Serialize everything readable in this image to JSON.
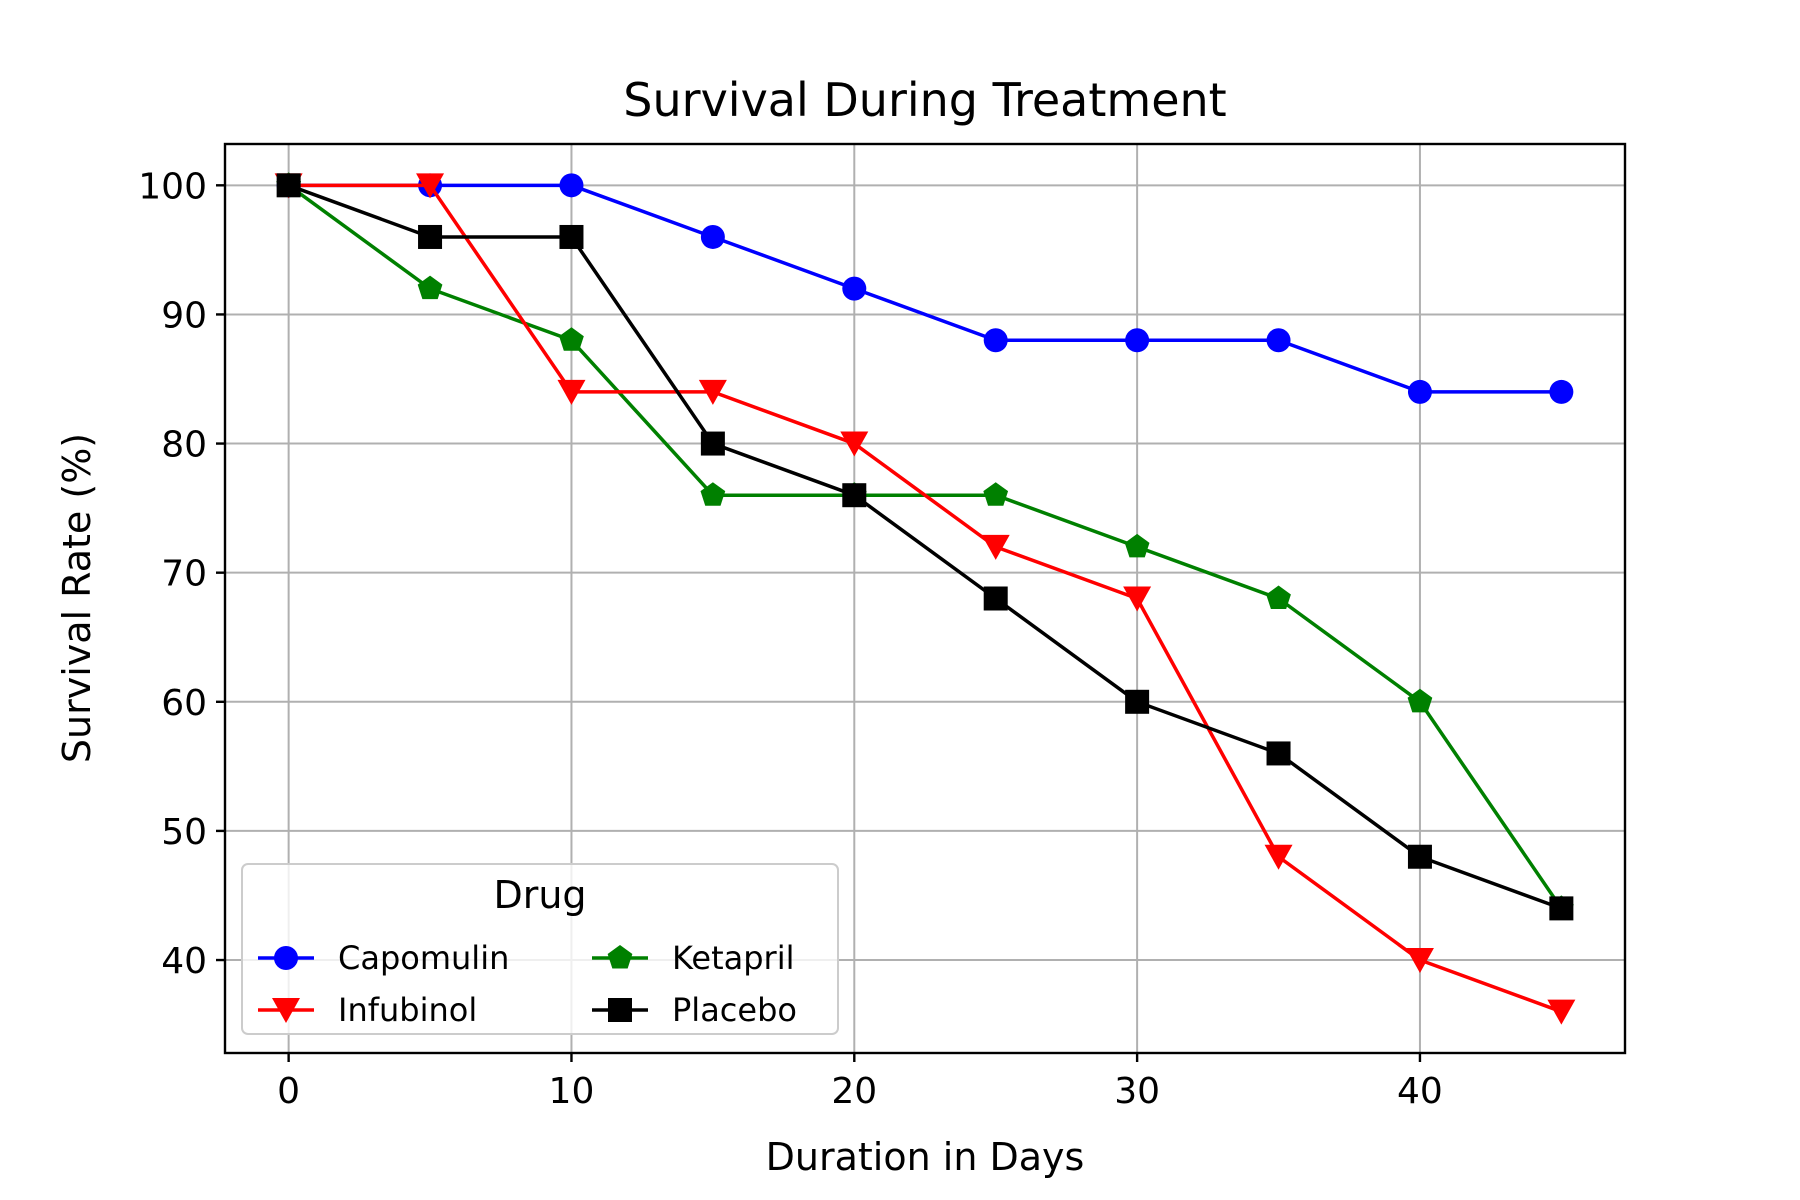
{
  "chart_data": {
    "type": "line",
    "title": "Survival During Treatment",
    "xlabel": "Duration in Days",
    "ylabel": "Survival Rate (%)",
    "xlim": [
      -2.25,
      47.25
    ],
    "ylim": [
      32.8,
      103.2
    ],
    "xticks": [
      0,
      10,
      20,
      30,
      40
    ],
    "yticks": [
      40,
      50,
      60,
      70,
      80,
      90,
      100
    ],
    "grid": true,
    "legend": {
      "title": "Drug",
      "placement": "lower-left",
      "columns": 2
    },
    "x": [
      0,
      5,
      10,
      15,
      20,
      25,
      30,
      35,
      40,
      45
    ],
    "series": [
      {
        "name": "Capomulin",
        "color": "#0000ff",
        "marker": "circle",
        "values": [
          100,
          100,
          100,
          96,
          92,
          88,
          88,
          88,
          84,
          84
        ]
      },
      {
        "name": "Ketapril",
        "color": "#008000",
        "marker": "pentagon",
        "values": [
          100,
          92,
          88,
          76,
          76,
          76,
          72,
          68,
          60,
          44
        ]
      },
      {
        "name": "Infubinol",
        "color": "#ff0000",
        "marker": "triangle-down",
        "values": [
          100,
          100,
          84,
          84,
          80,
          72,
          68,
          48,
          40,
          36
        ]
      },
      {
        "name": "Placebo",
        "color": "#000000",
        "marker": "square",
        "values": [
          100,
          96,
          96,
          80,
          76,
          68,
          60,
          56,
          48,
          44
        ]
      }
    ]
  }
}
